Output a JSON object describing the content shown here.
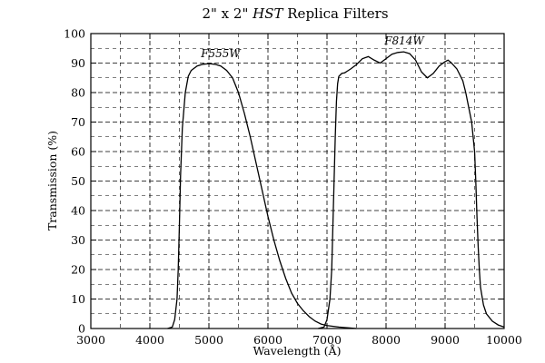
{
  "chart_data": {
    "type": "line",
    "title_parts": [
      "2\" x 2\" ",
      "HST",
      " Replica Filters"
    ],
    "xlabel": "Wavelength (Å)",
    "ylabel": "Transmission (%)",
    "xlim": [
      3000,
      10000
    ],
    "ylim": [
      0,
      100
    ],
    "xticks": [
      3000,
      4000,
      5000,
      6000,
      7000,
      8000,
      9000,
      10000
    ],
    "yticks": [
      0,
      10,
      20,
      30,
      40,
      50,
      60,
      70,
      80,
      90,
      100
    ],
    "x_minor_grid": [
      3500,
      4500,
      5500,
      6500,
      7500,
      8500,
      9500
    ],
    "y_minor_grid": [
      5,
      15,
      25,
      35,
      45,
      55,
      65,
      75,
      85,
      95
    ],
    "grid": true,
    "series": [
      {
        "name": "F555W",
        "points": [
          [
            4300,
            0
          ],
          [
            4380,
            0.5
          ],
          [
            4420,
            3
          ],
          [
            4460,
            10
          ],
          [
            4480,
            20
          ],
          [
            4500,
            35
          ],
          [
            4520,
            52
          ],
          [
            4550,
            68
          ],
          [
            4600,
            80
          ],
          [
            4650,
            85.5
          ],
          [
            4700,
            87.5
          ],
          [
            4800,
            89
          ],
          [
            4900,
            89.6
          ],
          [
            5000,
            89.8
          ],
          [
            5100,
            89.6
          ],
          [
            5200,
            89
          ],
          [
            5300,
            87.5
          ],
          [
            5400,
            85
          ],
          [
            5500,
            80
          ],
          [
            5600,
            73
          ],
          [
            5700,
            65
          ],
          [
            5800,
            56
          ],
          [
            5900,
            47
          ],
          [
            6000,
            38
          ],
          [
            6100,
            30
          ],
          [
            6200,
            23
          ],
          [
            6300,
            17
          ],
          [
            6400,
            12
          ],
          [
            6500,
            8.5
          ],
          [
            6600,
            6
          ],
          [
            6700,
            4
          ],
          [
            6800,
            2.5
          ],
          [
            6900,
            1.5
          ],
          [
            7000,
            1
          ],
          [
            7200,
            0.5
          ],
          [
            7500,
            0
          ]
        ]
      },
      {
        "name": "F814W",
        "points": [
          [
            6850,
            0
          ],
          [
            6950,
            0.5
          ],
          [
            7000,
            3
          ],
          [
            7050,
            10
          ],
          [
            7080,
            20
          ],
          [
            7100,
            35
          ],
          [
            7120,
            50
          ],
          [
            7140,
            65
          ],
          [
            7160,
            77
          ],
          [
            7180,
            83
          ],
          [
            7200,
            85.5
          ],
          [
            7250,
            86.5
          ],
          [
            7300,
            86.7
          ],
          [
            7400,
            88
          ],
          [
            7500,
            89.5
          ],
          [
            7600,
            91.5
          ],
          [
            7700,
            92.2
          ],
          [
            7800,
            91
          ],
          [
            7900,
            90
          ],
          [
            8000,
            91.5
          ],
          [
            8100,
            93
          ],
          [
            8200,
            93.6
          ],
          [
            8300,
            93.8
          ],
          [
            8400,
            93.2
          ],
          [
            8500,
            91
          ],
          [
            8600,
            87
          ],
          [
            8700,
            85
          ],
          [
            8800,
            86.5
          ],
          [
            8900,
            89
          ],
          [
            9000,
            90.5
          ],
          [
            9050,
            91
          ],
          [
            9100,
            90.2
          ],
          [
            9200,
            88
          ],
          [
            9300,
            84
          ],
          [
            9350,
            80
          ],
          [
            9400,
            75
          ],
          [
            9450,
            70
          ],
          [
            9500,
            60
          ],
          [
            9520,
            50
          ],
          [
            9540,
            38
          ],
          [
            9560,
            28
          ],
          [
            9580,
            20
          ],
          [
            9600,
            14
          ],
          [
            9650,
            8
          ],
          [
            9700,
            5
          ],
          [
            9800,
            2.5
          ],
          [
            9900,
            1.2
          ],
          [
            10000,
            0.5
          ]
        ]
      }
    ]
  }
}
